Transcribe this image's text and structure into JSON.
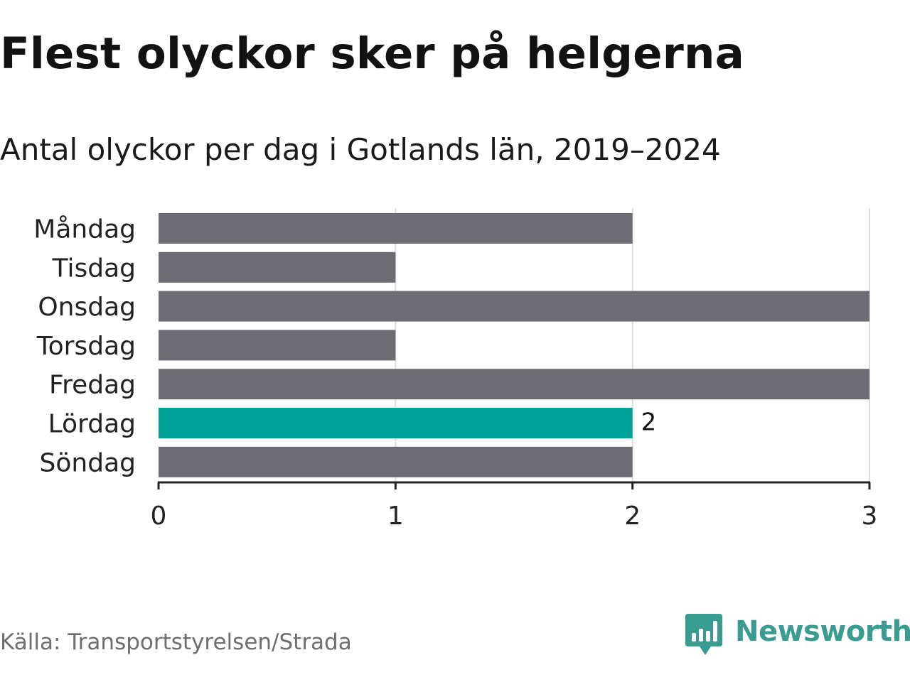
{
  "header": {
    "title": "Flest olyckor sker på helgerna",
    "subtitle": "Antal olyckor per dag i Gotlands län, 2019–2024"
  },
  "footer": {
    "source": "Källa: Transportstyrelsen/Strada",
    "brand": "Newsworthy",
    "brand_icon": "bar-chart-speech-bubble-icon"
  },
  "colors": {
    "bar_default": "#6d6c73",
    "bar_highlight": "#00a398",
    "grid": "#dddddd",
    "axis": "#222222",
    "brand": "#3a9c91"
  },
  "chart_data": {
    "type": "bar",
    "orientation": "horizontal",
    "categories": [
      "Måndag",
      "Tisdag",
      "Onsdag",
      "Torsdag",
      "Fredag",
      "Lördag",
      "Söndag"
    ],
    "values": [
      2,
      1,
      3,
      1,
      3,
      2,
      2
    ],
    "highlight_category": "Lördag",
    "data_labels": [
      {
        "category": "Lördag",
        "text": "2"
      }
    ],
    "xlim": [
      0,
      3
    ],
    "xticks": [
      0,
      1,
      2,
      3
    ],
    "grid": true
  }
}
